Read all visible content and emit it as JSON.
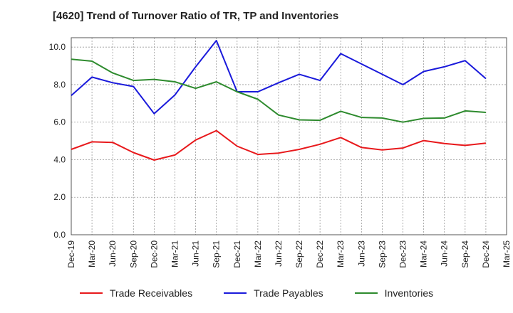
{
  "title": "[4620]  Trend of Turnover Ratio of TR, TP and Inventories",
  "chart_data": {
    "type": "line",
    "title": "[4620]  Trend of Turnover Ratio of TR, TP and Inventories",
    "xlabel": "",
    "ylabel": "",
    "ylim": [
      0,
      10.5
    ],
    "yticks": [
      "0.0",
      "2.0",
      "4.0",
      "6.0",
      "8.0",
      "10.0"
    ],
    "ytick_values": [
      0,
      2,
      4,
      6,
      8,
      10
    ],
    "grid": true,
    "legend_position": "bottom",
    "x_tick_labels": [
      "Dec-19",
      "Mar-20",
      "Jun-20",
      "Sep-20",
      "Dec-20",
      "Mar-21",
      "Jun-21",
      "Sep-21",
      "Dec-21",
      "Mar-22",
      "Jun-22",
      "Sep-22",
      "Dec-22",
      "Mar-23",
      "Jun-23",
      "Sep-23",
      "Dec-23",
      "Mar-24",
      "Jun-24",
      "Sep-24",
      "Dec-24",
      "Mar-25"
    ],
    "x": [
      "Dec-19",
      "Mar-20",
      "Jun-20",
      "Sep-20",
      "Dec-20",
      "Mar-21",
      "Jun-21",
      "Sep-21",
      "Dec-21",
      "Mar-22",
      "Jun-22",
      "Sep-22",
      "Dec-22",
      "Mar-23",
      "Jun-23",
      "Sep-23",
      "Dec-23",
      "Mar-24",
      "Jun-24",
      "Sep-24",
      "Dec-24"
    ],
    "series": [
      {
        "name": "Trade Receivables",
        "color": "#e8191c",
        "values": [
          4.55,
          4.95,
          4.92,
          4.38,
          3.98,
          4.25,
          5.05,
          5.55,
          4.72,
          4.28,
          4.35,
          4.55,
          4.82,
          5.18,
          4.65,
          4.52,
          4.62,
          5.02,
          4.86,
          4.76,
          4.88
        ]
      },
      {
        "name": "Trade Payables",
        "color": "#1a1adb",
        "values": [
          7.42,
          8.4,
          8.1,
          7.9,
          6.45,
          7.45,
          8.95,
          10.35,
          7.62,
          7.62,
          8.1,
          8.55,
          8.22,
          9.65,
          9.1,
          8.55,
          8.0,
          8.7,
          8.95,
          9.28,
          8.32
        ]
      },
      {
        "name": "Inventories",
        "color": "#2e8b2e",
        "values": [
          9.35,
          9.25,
          8.62,
          8.22,
          8.28,
          8.15,
          7.8,
          8.15,
          7.62,
          7.22,
          6.38,
          6.12,
          6.1,
          6.58,
          6.25,
          6.22,
          6.0,
          6.2,
          6.22,
          6.6,
          6.52
        ]
      }
    ]
  }
}
